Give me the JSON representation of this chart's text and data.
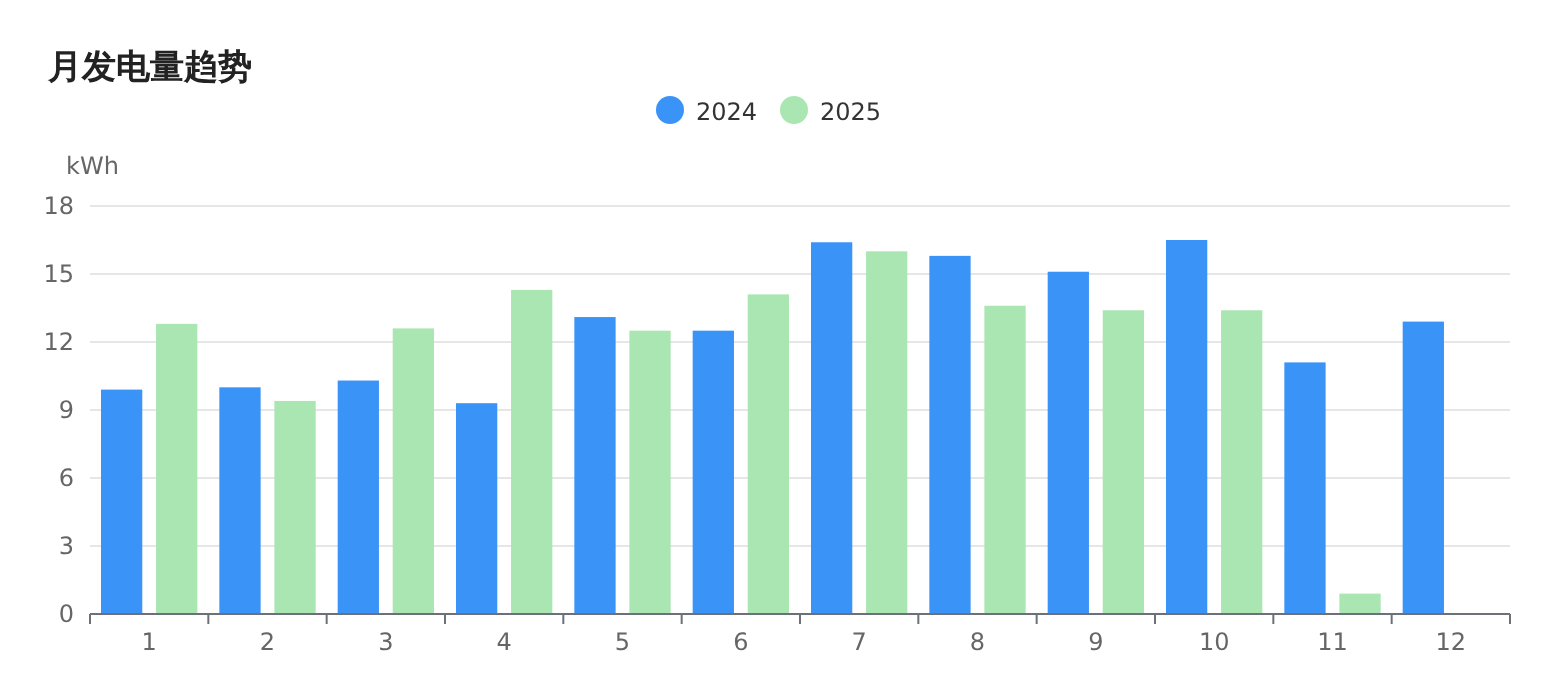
{
  "chart_data": {
    "type": "bar",
    "title": "月发电量趋势",
    "ylabel": "kWh",
    "categories": [
      "1",
      "2",
      "3",
      "4",
      "5",
      "6",
      "7",
      "8",
      "9",
      "10",
      "11",
      "12"
    ],
    "series": [
      {
        "name": "2024",
        "color": "#3a93f7",
        "values": [
          9.9,
          10.0,
          10.3,
          9.3,
          13.1,
          12.5,
          16.4,
          15.8,
          15.1,
          16.5,
          11.1,
          12.9
        ]
      },
      {
        "name": "2025",
        "color": "#aae6b2",
        "values": [
          12.8,
          9.4,
          12.6,
          14.3,
          12.5,
          14.1,
          16.0,
          13.6,
          13.4,
          13.4,
          0.9,
          null
        ]
      }
    ],
    "ylim": [
      0,
      18
    ],
    "yticks": [
      0,
      3,
      6,
      9,
      12,
      15,
      18
    ],
    "grid": "y",
    "legend": "top"
  }
}
